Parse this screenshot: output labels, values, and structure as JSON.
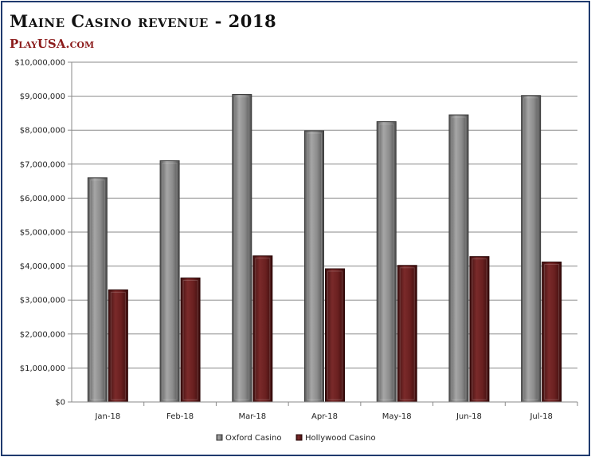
{
  "header": {
    "title": "Maine Casino revenue - 2018",
    "brand": "PlayUSA.com"
  },
  "colors": {
    "oxford": "#8a8a8a",
    "hollywood": "#6b1f1f",
    "frame": "#1f3a6e",
    "brand": "#8c1c1c"
  },
  "chart_data": {
    "type": "bar",
    "title": "Maine Casino revenue - 2018",
    "categories": [
      "Jan-18",
      "Feb-18",
      "Mar-18",
      "Apr-18",
      "May-18",
      "Jun-18",
      "Jul-18"
    ],
    "series": [
      {
        "name": "Oxford Casino",
        "values": [
          6600000,
          7100000,
          9050000,
          7980000,
          8250000,
          8450000,
          9020000
        ]
      },
      {
        "name": "Hollywood Casino",
        "values": [
          3300000,
          3650000,
          4300000,
          3920000,
          4020000,
          4280000,
          4120000
        ]
      }
    ],
    "ylim": [
      0,
      10000000
    ],
    "yticks": [
      "$0",
      "$1,000,000",
      "$2,000,000",
      "$3,000,000",
      "$4,000,000",
      "$5,000,000",
      "$6,000,000",
      "$7,000,000",
      "$8,000,000",
      "$9,000,000",
      "$10,000,000"
    ],
    "grid": true,
    "legend": "bottom"
  }
}
